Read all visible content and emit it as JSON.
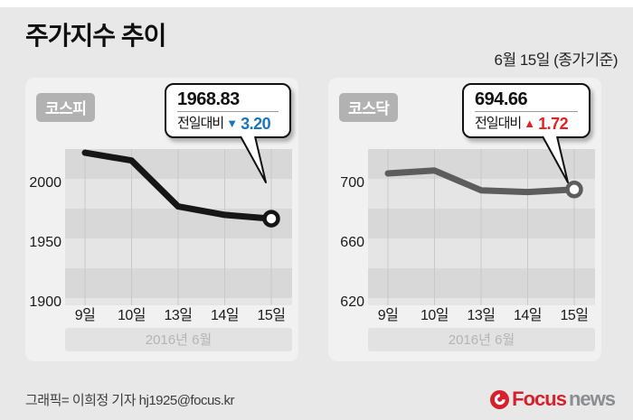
{
  "header": {
    "title": "주가지수 추이",
    "date_note": "6월 15일 (종가기준)"
  },
  "colors": {
    "background": "#e8e8e8",
    "card": "#f1f1f1",
    "band_dark": "#d8d8d8",
    "band_light": "#e5e5e5",
    "gridline": "#c9c9c9",
    "axis_text": "#1a1a1a",
    "strip_bg": "#e2e2e2",
    "strip_text": "#b4b4b4",
    "kospi_line": "#161616",
    "kosdaq_line": "#5d5d5d",
    "down_blue": "#1b75bc",
    "up_red": "#e02222"
  },
  "chart_data": [
    {
      "type": "line",
      "title": "코스피",
      "categories": [
        "9일",
        "10일",
        "13일",
        "14일",
        "15일"
      ],
      "values": [
        2024.17,
        2017.63,
        1979.06,
        1972.03,
        1968.83
      ],
      "y_ticks": [
        2000,
        1950,
        1900
      ],
      "ylim": [
        1893,
        2027
      ],
      "x_axis_note": "2016년 6월",
      "grid": "horizontal-bands",
      "line_color": "#161616",
      "callout": {
        "value": "1968.83",
        "label": "전일대비",
        "direction": "down",
        "arrow": "▼",
        "change": "3.20",
        "change_color": "#1b75bc"
      }
    },
    {
      "type": "line",
      "title": "코스닥",
      "categories": [
        "9일",
        "10일",
        "13일",
        "14일",
        "15일"
      ],
      "values": [
        705.46,
        707.4,
        694.13,
        692.94,
        694.66
      ],
      "y_ticks": [
        700,
        660,
        620
      ],
      "ylim": [
        614,
        712
      ],
      "x_axis_note": "2016년 6월",
      "grid": "horizontal-bands",
      "line_color": "#5d5d5d",
      "callout": {
        "value": "694.66",
        "label": "전일대비",
        "direction": "up",
        "arrow": "▲",
        "change": "1.72",
        "change_color": "#e02222"
      }
    }
  ],
  "footer": {
    "credit": "그래픽= 이희정 기자 hj1925@focus.kr",
    "logo": {
      "icon": "focus-swirl-icon",
      "brand_first": "Focus",
      "brand_second": "news"
    }
  }
}
